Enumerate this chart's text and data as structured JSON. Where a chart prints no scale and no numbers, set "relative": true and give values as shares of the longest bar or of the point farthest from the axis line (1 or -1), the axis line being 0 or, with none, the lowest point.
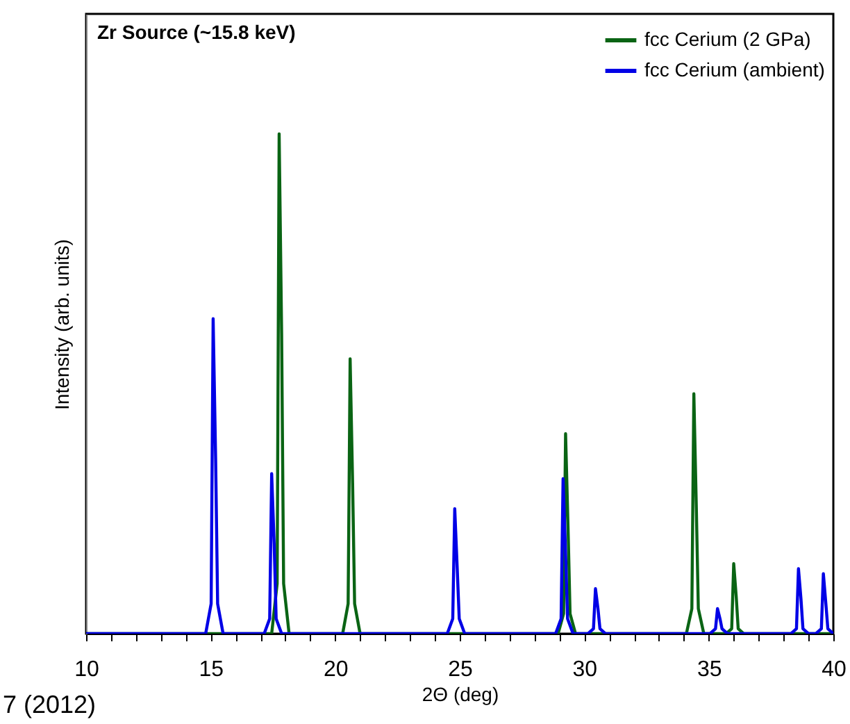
{
  "chart_data": {
    "type": "line",
    "relative": true,
    "xlabel": "2Θ (deg)",
    "ylabel": "Intensity (arb. units)",
    "annotations": [
      "Zr Source (~15.8 keV)",
      "7 (2012)"
    ],
    "xlim": [
      10,
      40
    ],
    "xticks": [
      10,
      {
        "value": 11,
        "label": null
      },
      {
        "value": 12,
        "label": null
      },
      {
        "value": 13,
        "label": null
      },
      {
        "value": 14,
        "label": null
      },
      15,
      {
        "value": 16,
        "label": null
      },
      {
        "value": 17,
        "label": null
      },
      {
        "value": 18,
        "label": null
      },
      {
        "value": 19,
        "label": null
      },
      20,
      {
        "value": 21,
        "label": null
      },
      {
        "value": 22,
        "label": null
      },
      {
        "value": 23,
        "label": null
      },
      {
        "value": 24,
        "label": null
      },
      25,
      {
        "value": 26,
        "label": null
      },
      {
        "value": 27,
        "label": null
      },
      {
        "value": 28,
        "label": null
      },
      {
        "value": 29,
        "label": null
      },
      30,
      {
        "value": 31,
        "label": null
      },
      {
        "value": 32,
        "label": null
      },
      {
        "value": 33,
        "label": null
      },
      {
        "value": 34,
        "label": null
      },
      35,
      {
        "value": 36,
        "label": null
      },
      {
        "value": 37,
        "label": null
      },
      {
        "value": 38,
        "label": null
      },
      {
        "value": 39,
        "label": null
      },
      40
    ],
    "tick_labels": "x",
    "grid": false,
    "legend": "top right",
    "marker": "none",
    "line_style": "solid",
    "series": [
      {
        "name": "fcc Cerium (2 GPa)",
        "color": "#0a6414",
        "x": [
          10,
          17.45,
          17.67,
          17.75,
          17.85,
          17.93,
          18.15,
          20.3,
          20.52,
          20.6,
          20.7,
          20.78,
          21.0,
          28.95,
          29.17,
          29.25,
          29.35,
          29.43,
          29.65,
          34.1,
          34.32,
          34.4,
          34.5,
          34.58,
          34.8,
          35.7,
          35.92,
          36.0,
          36.1,
          36.18,
          36.4,
          40
        ],
        "values": [
          0,
          0,
          0.1,
          1,
          0.6,
          0.1,
          0,
          0,
          0.06,
          0.55,
          0.3,
          0.06,
          0,
          0,
          0.04,
          0.4,
          0.21,
          0.04,
          0,
          0,
          0.05,
          0.48,
          0.25,
          0.05,
          0,
          0,
          0.01,
          0.14,
          0.075,
          0.01,
          0,
          0
        ]
      },
      {
        "name": "fcc Cerium (ambient)",
        "color": "#0000e6",
        "x": [
          10,
          14.8,
          15.02,
          15.1,
          15.2,
          15.28,
          15.5,
          17.15,
          17.37,
          17.45,
          17.55,
          17.63,
          17.85,
          24.5,
          24.72,
          24.8,
          24.9,
          24.98,
          25.2,
          28.85,
          29.07,
          29.15,
          29.25,
          29.33,
          29.55,
          30.15,
          30.37,
          30.45,
          30.55,
          30.63,
          30.85,
          35.05,
          35.27,
          35.35,
          35.45,
          35.53,
          35.75,
          38.3,
          38.52,
          38.6,
          38.7,
          38.78,
          39.0,
          39.3,
          39.52,
          39.6,
          39.7,
          39.78,
          40
        ],
        "values": [
          0,
          0,
          0.06,
          0.63,
          0.35,
          0.06,
          0,
          0,
          0.03,
          0.32,
          0.18,
          0.03,
          0,
          0,
          0.03,
          0.25,
          0.13,
          0.03,
          0,
          0,
          0.03,
          0.31,
          0.16,
          0.03,
          0,
          0,
          0.01,
          0.09,
          0.05,
          0.01,
          0,
          0,
          0.01,
          0.05,
          0.03,
          0.01,
          0,
          0,
          0.01,
          0.13,
          0.07,
          0.01,
          0,
          0,
          0.01,
          0.12,
          0.06,
          0.01,
          0
        ]
      }
    ]
  }
}
